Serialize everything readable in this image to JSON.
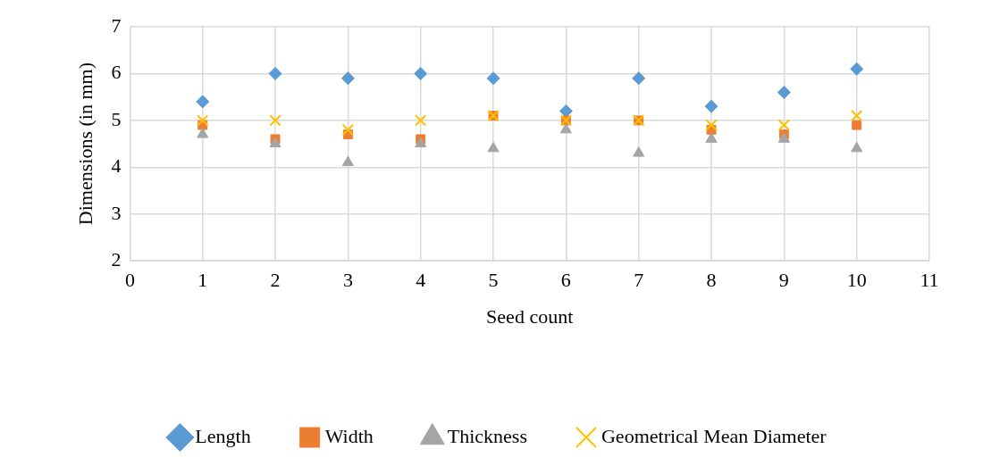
{
  "chart_data": {
    "type": "scatter",
    "xlabel": "Seed count",
    "ylabel": "Dimensions (in mm)",
    "x": [
      1,
      2,
      3,
      4,
      5,
      6,
      7,
      8,
      9,
      10
    ],
    "xlim": [
      0,
      11
    ],
    "xticks": [
      0,
      1,
      2,
      3,
      4,
      5,
      6,
      7,
      8,
      9,
      10,
      11
    ],
    "ylim": [
      2,
      7
    ],
    "yticks": [
      2,
      3,
      4,
      5,
      6,
      7
    ],
    "grid": true,
    "legend": "bottom",
    "series": [
      {
        "name": "Length",
        "color": "#5b9bd5",
        "marker": "diamond",
        "values": [
          5.4,
          6.0,
          5.9,
          6.0,
          5.9,
          5.2,
          5.9,
          5.3,
          5.6,
          6.1
        ]
      },
      {
        "name": "Width",
        "color": "#ed7d31",
        "marker": "square",
        "values": [
          4.9,
          4.6,
          4.7,
          4.6,
          5.1,
          5.0,
          5.0,
          4.8,
          4.7,
          4.9
        ]
      },
      {
        "name": "Thickness",
        "color": "#a5a5a5",
        "marker": "triangle",
        "values": [
          4.7,
          4.5,
          4.1,
          4.5,
          4.4,
          4.8,
          4.3,
          4.6,
          4.6,
          4.4
        ]
      },
      {
        "name": "Geometrical Mean Diameter",
        "color": "#ffc000",
        "marker": "cross",
        "values": [
          5.0,
          5.0,
          4.8,
          5.0,
          5.1,
          5.0,
          5.0,
          4.9,
          4.9,
          5.1
        ]
      }
    ]
  }
}
